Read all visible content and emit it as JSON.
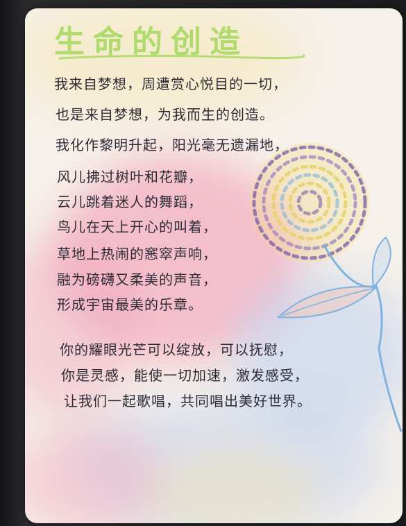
{
  "poem": {
    "title": "生命的创造",
    "lines": [
      "我来自梦想，周遭赏心悦目的一切，",
      "也是来自梦想，为我而生的创造。",
      "我化作黎明升起，阳光毫无遗漏地，",
      "风儿拂过树叶和花瓣，",
      "云儿跳着迷人的舞蹈，",
      "鸟儿在天上开心的叫着，",
      "草地上热闹的窸窣声响，",
      "融为磅礴又柔美的声音，",
      "形成宇宙最美的乐章。",
      "你的耀眼光芒可以绽放，可以抚慰，",
      "你是灵感，能使一切加速，激发感受，",
      "让我们一起歌唱，共同唱出美好世界。"
    ]
  },
  "colors": {
    "paper": "#f6f1ea",
    "title": "#a7da62",
    "ink": "#2d2a34",
    "wash_pink": "#f2a6b8",
    "wash_blue": "#c8d4f0",
    "wash_yellow": "#f3e6b0",
    "flower_violet": "#6b4b9a",
    "flower_yellow": "#f1e08a",
    "stem_blue": "#7fb2df"
  },
  "illustration": {
    "subject": "watercolor-flower-with-stem-and-leaves"
  }
}
